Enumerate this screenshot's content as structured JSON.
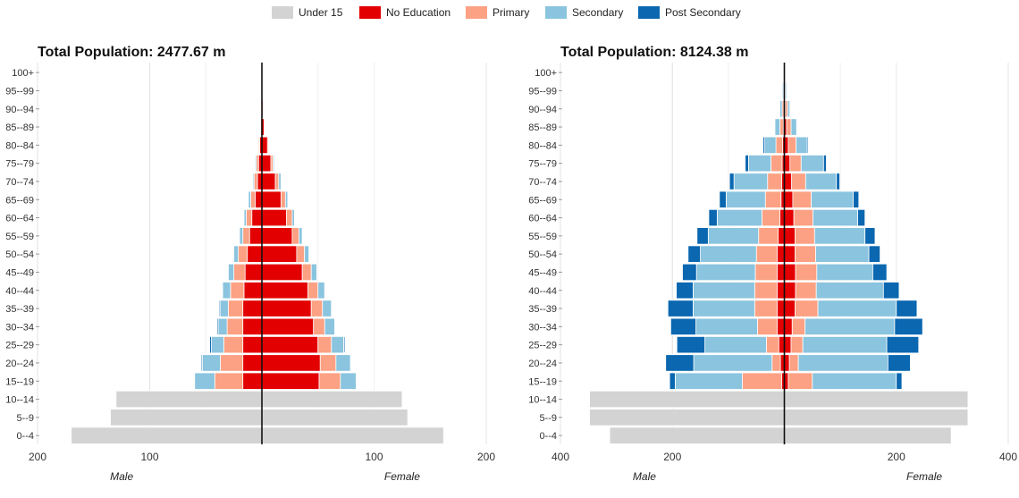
{
  "legend": [
    {
      "label": "Under 15",
      "color": "#d3d3d3"
    },
    {
      "label": "No Education",
      "color": "#e30000"
    },
    {
      "label": "Primary",
      "color": "#fca183"
    },
    {
      "label": "Secondary",
      "color": "#8ac4df"
    },
    {
      "label": "Post Secondary",
      "color": "#0a67b0"
    }
  ],
  "chart_data": [
    {
      "type": "bar",
      "subtype": "population-pyramid",
      "title": "Total Population: 2477.67 m",
      "xlabel_left": "Male",
      "xlabel_right": "Female",
      "xlim": [
        -200,
        200
      ],
      "xticks": [
        {
          "value": -200,
          "label": "200"
        },
        {
          "value": -100,
          "label": "100"
        },
        {
          "value": 100,
          "label": "100"
        },
        {
          "value": 200,
          "label": "200"
        }
      ],
      "categories": [
        "0--4",
        "5--9",
        "10--14",
        "15--19",
        "20--24",
        "25--29",
        "30--34",
        "35--39",
        "40--44",
        "45--49",
        "50--54",
        "55--59",
        "60--64",
        "65--69",
        "70--74",
        "75--79",
        "80--84",
        "85--89",
        "90--94",
        "95--99",
        "100+"
      ],
      "series": [
        {
          "name": "Under 15",
          "male": [
            170,
            135,
            130,
            0,
            0,
            0,
            0,
            0,
            0,
            0,
            0,
            0,
            0,
            0,
            0,
            0,
            0,
            0,
            0,
            0,
            0
          ],
          "female": [
            162,
            130,
            125,
            0,
            0,
            0,
            0,
            0,
            0,
            0,
            0,
            0,
            0,
            0,
            0,
            0,
            0,
            0,
            0,
            0,
            0
          ]
        },
        {
          "name": "No Education",
          "male": [
            0,
            0,
            0,
            17,
            17,
            17,
            17,
            17,
            16,
            15,
            13,
            11,
            9,
            6,
            4,
            3,
            2,
            1,
            0.5,
            0.2,
            0
          ],
          "female": [
            0,
            0,
            0,
            51,
            52,
            50,
            46,
            44,
            41,
            36,
            31,
            27,
            22,
            17,
            12,
            8,
            5,
            2,
            1,
            0.3,
            0
          ]
        },
        {
          "name": "Primary",
          "male": [
            0,
            0,
            0,
            25,
            20,
            17,
            14,
            13,
            12,
            10,
            8,
            6,
            5,
            4,
            3,
            2,
            1,
            0.5,
            0.2,
            0,
            0
          ],
          "female": [
            0,
            0,
            0,
            19,
            14,
            12,
            10,
            10,
            9,
            8,
            7,
            6,
            5,
            4,
            3,
            2,
            1,
            0.5,
            0.2,
            0,
            0
          ]
        },
        {
          "name": "Secondary",
          "male": [
            0,
            0,
            0,
            18,
            16,
            11,
            8,
            7,
            7,
            5,
            4,
            3,
            2,
            2,
            1,
            1,
            0.5,
            0.2,
            0.1,
            0,
            0
          ],
          "female": [
            0,
            0,
            0,
            14,
            13,
            11,
            9,
            8,
            6,
            5,
            4,
            3,
            2,
            2,
            2,
            1,
            0.5,
            0.2,
            0.1,
            0,
            0
          ]
        },
        {
          "name": "Post Secondary",
          "male": [
            0,
            0,
            0,
            0.5,
            1,
            1.5,
            1,
            1,
            0.5,
            0.5,
            0.3,
            0.2,
            0.1,
            0,
            0,
            0,
            0,
            0,
            0,
            0,
            0
          ],
          "female": [
            0,
            0,
            0,
            0,
            0.5,
            1,
            0.5,
            0.5,
            0.3,
            0.3,
            0.2,
            0.1,
            0.1,
            0,
            0,
            0,
            0,
            0,
            0,
            0,
            0
          ]
        }
      ]
    },
    {
      "type": "bar",
      "subtype": "population-pyramid",
      "title": "Total Population: 8124.38 m",
      "xlabel_left": "Male",
      "xlabel_right": "Female",
      "xlim": [
        -400,
        400
      ],
      "xticks": [
        {
          "value": -400,
          "label": "400"
        },
        {
          "value": -200,
          "label": "200"
        },
        {
          "value": 200,
          "label": "200"
        },
        {
          "value": 400,
          "label": "400"
        }
      ],
      "categories": [
        "0--4",
        "5--9",
        "10--14",
        "15--19",
        "20--24",
        "25--29",
        "30--34",
        "35--39",
        "40--44",
        "45--49",
        "50--54",
        "55--59",
        "60--64",
        "65--69",
        "70--74",
        "75--79",
        "80--84",
        "85--89",
        "90--94",
        "95--99",
        "100+"
      ],
      "series": [
        {
          "name": "Under 15",
          "male": [
            312,
            348,
            348,
            0,
            0,
            0,
            0,
            0,
            0,
            0,
            0,
            0,
            0,
            0,
            0,
            0,
            0,
            0,
            0,
            0,
            0
          ],
          "female": [
            298,
            328,
            328,
            0,
            0,
            0,
            0,
            0,
            0,
            0,
            0,
            0,
            0,
            0,
            0,
            0,
            0,
            0,
            0,
            0,
            0
          ]
        },
        {
          "name": "No Education",
          "male": [
            0,
            0,
            0,
            5,
            7,
            10,
            13,
            13,
            13,
            13,
            13,
            11,
            8,
            6,
            5,
            4,
            3,
            2,
            1,
            0.5,
            0
          ],
          "female": [
            0,
            0,
            0,
            7,
            9,
            12,
            14,
            19,
            20,
            20,
            19,
            19,
            17,
            15,
            13,
            10,
            7,
            4,
            2,
            1,
            0
          ]
        },
        {
          "name": "Primary",
          "male": [
            0,
            0,
            0,
            70,
            15,
            22,
            35,
            40,
            40,
            39,
            37,
            35,
            32,
            28,
            25,
            20,
            12,
            6,
            3,
            1,
            0
          ],
          "female": [
            0,
            0,
            0,
            43,
            16,
            21,
            23,
            41,
            37,
            38,
            37,
            35,
            34,
            33,
            25,
            20,
            14,
            8,
            4,
            1,
            0
          ]
        },
        {
          "name": "Secondary",
          "male": [
            0,
            0,
            0,
            120,
            140,
            110,
            110,
            110,
            110,
            105,
            100,
            90,
            80,
            70,
            60,
            40,
            20,
            9,
            4,
            2,
            0
          ],
          "female": [
            0,
            0,
            0,
            150,
            160,
            150,
            160,
            140,
            120,
            100,
            95,
            90,
            80,
            75,
            55,
            40,
            20,
            10,
            4,
            2,
            0
          ]
        },
        {
          "name": "Post Secondary",
          "male": [
            0,
            0,
            0,
            10,
            50,
            50,
            45,
            45,
            30,
            25,
            22,
            20,
            15,
            12,
            8,
            6,
            3,
            1,
            0.5,
            0,
            0
          ],
          "female": [
            0,
            0,
            0,
            10,
            40,
            57,
            50,
            37,
            28,
            25,
            20,
            18,
            13,
            10,
            6,
            5,
            2,
            1,
            0.5,
            0,
            0
          ]
        }
      ]
    }
  ]
}
